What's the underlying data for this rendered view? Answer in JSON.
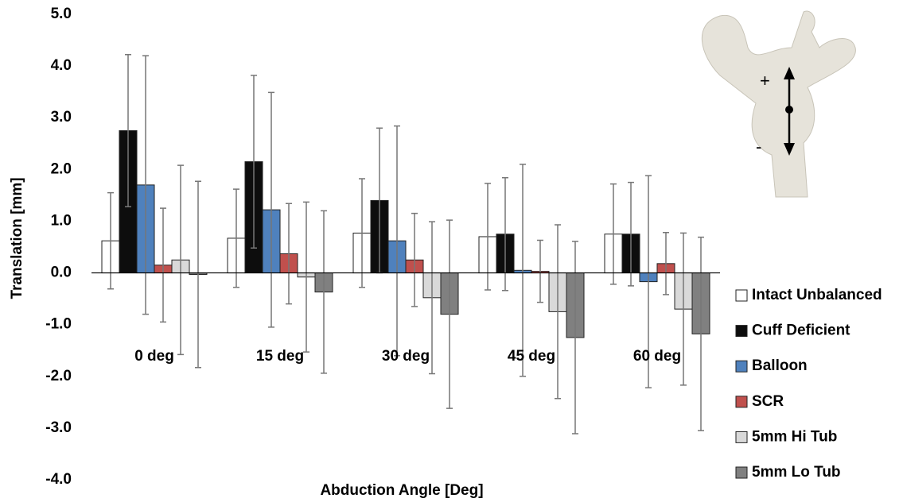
{
  "chart_data": {
    "type": "bar",
    "x_label": "Abduction Angle [Deg]",
    "y_label": "Translation [mm]",
    "categories": [
      "0 deg",
      "15 deg",
      "30 deg",
      "45 deg",
      "60 deg"
    ],
    "series": [
      {
        "name": "Intact Unbalanced",
        "color": "#ffffff",
        "values": [
          0.62,
          0.67,
          0.77,
          0.7,
          0.75
        ],
        "errors": [
          0.93,
          0.95,
          1.05,
          1.03,
          0.97
        ]
      },
      {
        "name": "Cuff Deficient",
        "color": "#0d0d0d",
        "values": [
          2.75,
          2.15,
          1.4,
          0.75,
          0.75
        ],
        "errors": [
          1.47,
          1.67,
          1.4,
          1.09,
          1.0
        ]
      },
      {
        "name": "Balloon",
        "color": "#4f81bd",
        "values": [
          1.7,
          1.22,
          0.62,
          0.05,
          -0.17
        ],
        "errors": [
          2.5,
          2.27,
          2.22,
          2.05,
          2.05
        ]
      },
      {
        "name": "SCR",
        "color": "#c0504d",
        "values": [
          0.15,
          0.37,
          0.25,
          0.03,
          0.18
        ],
        "errors": [
          1.1,
          0.97,
          0.9,
          0.6,
          0.6
        ]
      },
      {
        "name": "5mm Hi Tub",
        "color": "#d9d9d9",
        "values": [
          0.25,
          -0.08,
          -0.48,
          -0.75,
          -0.7
        ],
        "errors": [
          1.83,
          1.45,
          1.47,
          1.68,
          1.47
        ]
      },
      {
        "name": "5mm Lo Tub",
        "color": "#808080",
        "values": [
          -0.03,
          -0.37,
          -0.8,
          -1.25,
          -1.18
        ],
        "errors": [
          1.8,
          1.57,
          1.82,
          1.86,
          1.87
        ]
      }
    ],
    "ylim": [
      -4,
      5
    ],
    "yticks": [
      {
        "value": -4,
        "label": "-4.0"
      },
      {
        "value": -3,
        "label": "-3.0"
      },
      {
        "value": -2,
        "label": "-2.0"
      },
      {
        "value": -1,
        "label": "-1.0"
      },
      {
        "value": 0,
        "label": "0.0"
      },
      {
        "value": 1,
        "label": "1.0"
      },
      {
        "value": 2,
        "label": "2.0"
      },
      {
        "value": 3,
        "label": "3.0"
      },
      {
        "value": 4,
        "label": "4.0"
      },
      {
        "value": 5,
        "label": "5.0"
      }
    ],
    "grid": false,
    "legend": "right"
  },
  "inset_labels": [
    "+",
    "-"
  ]
}
